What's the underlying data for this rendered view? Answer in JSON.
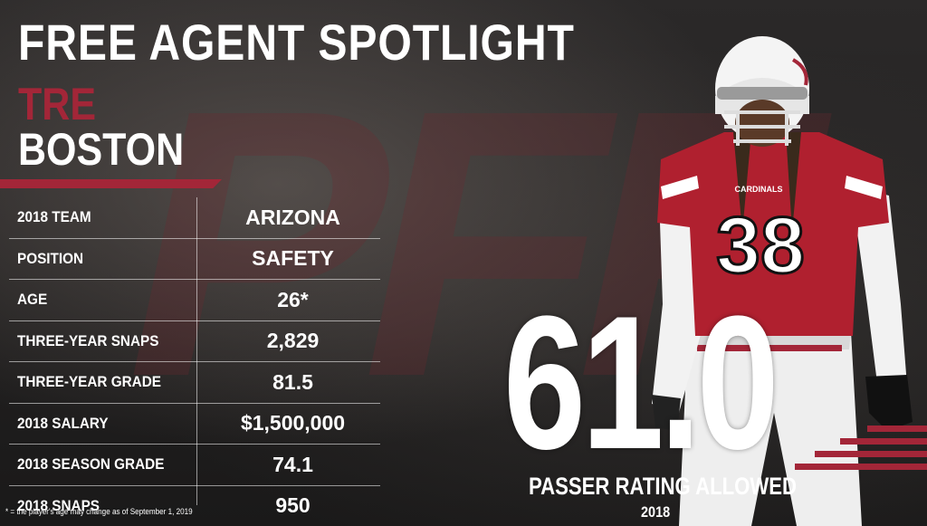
{
  "header": {
    "title": "FREE AGENT SPOTLIGHT",
    "first_name": "TRE",
    "last_name": "BOSTON"
  },
  "watermark": "PFF",
  "stats": [
    {
      "label": "2018 TEAM",
      "value": "ARIZONA"
    },
    {
      "label": "POSITION",
      "value": "SAFETY"
    },
    {
      "label": "AGE",
      "value": "26*"
    },
    {
      "label": "THREE-YEAR SNAPS",
      "value": "2,829"
    },
    {
      "label": "THREE-YEAR GRADE",
      "value": "81.5"
    },
    {
      "label": "2018 SALARY",
      "value": "$1,500,000"
    },
    {
      "label": "2018 SEASON GRADE",
      "value": "74.1"
    },
    {
      "label": "2018 SNAPS",
      "value": "950"
    }
  ],
  "footnote": "* = the player's age may change as of September 1, 2019",
  "feature_stat": {
    "value": "61.0",
    "caption": "PASSER RATING ALLOWED",
    "year": "2018"
  },
  "player": {
    "jersey_number": "38",
    "jersey_text": "CARDINALS"
  },
  "colors": {
    "accent": "#a32638",
    "text": "#ffffff",
    "background": "#1b1a1a"
  }
}
